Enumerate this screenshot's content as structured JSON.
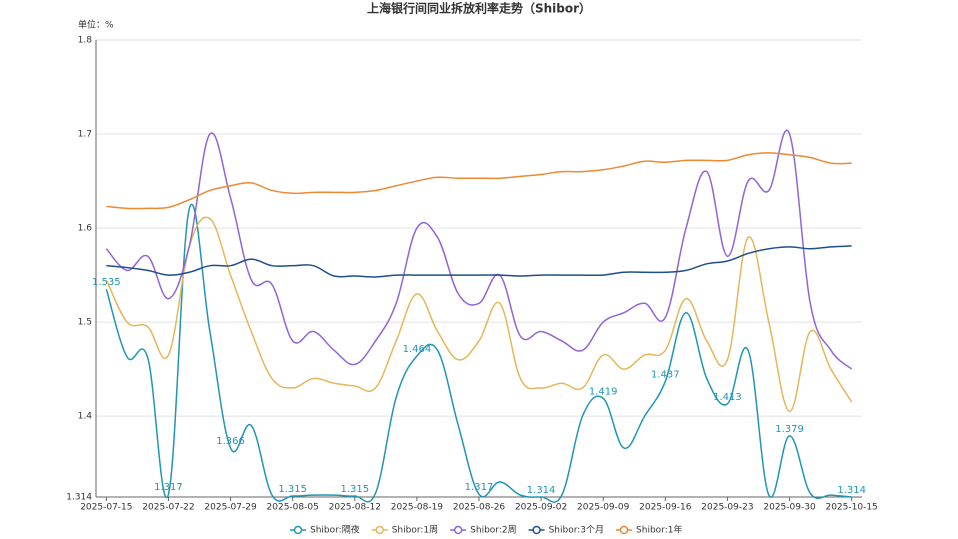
{
  "chart_data": {
    "type": "line",
    "title": "上海银行间同业拆放利率走势（Shibor）",
    "y_label": "单位：%",
    "categories": [
      "2025-07-15",
      null,
      null,
      "2025-07-22",
      null,
      null,
      "2025-07-29",
      null,
      null,
      "2025-08-05",
      null,
      null,
      "2025-08-12",
      null,
      null,
      "2025-08-19",
      null,
      null,
      "2025-08-26",
      null,
      null,
      "2025-09-02",
      null,
      null,
      "2025-09-09",
      null,
      null,
      "2025-09-16",
      null,
      null,
      "2025-09-23",
      null,
      null,
      "2025-09-30",
      null,
      null,
      "2025-10-15"
    ],
    "series": [
      {
        "name": "Shibor:隔夜",
        "color": "#1e96b4",
        "values": [
          1.535,
          1.463,
          1.462,
          1.317,
          1.62,
          1.49,
          1.366,
          1.39,
          1.316,
          1.315,
          1.316,
          1.316,
          1.315,
          1.318,
          1.42,
          1.464,
          1.47,
          1.39,
          1.317,
          1.33,
          1.316,
          1.314,
          1.316,
          1.4,
          1.419,
          1.366,
          1.4,
          1.437,
          1.51,
          1.44,
          1.413,
          1.47,
          1.316,
          1.379,
          1.318,
          1.316,
          1.314
        ],
        "value_labels": [
          "1.535",
          null,
          null,
          "1.317",
          null,
          null,
          "1.366",
          null,
          null,
          "1.315",
          null,
          null,
          "1.315",
          null,
          null,
          "1.464",
          null,
          null,
          "1.317",
          null,
          null,
          "1.314",
          null,
          null,
          "1.419",
          null,
          null,
          "1.437",
          null,
          null,
          "1.413",
          null,
          null,
          "1.379",
          null,
          null,
          "1.314"
        ]
      },
      {
        "name": "Shibor:1周",
        "color": "#e5b65a",
        "values": [
          1.545,
          1.5,
          1.495,
          1.465,
          1.58,
          1.61,
          1.55,
          1.49,
          1.44,
          1.43,
          1.44,
          1.435,
          1.432,
          1.43,
          1.48,
          1.53,
          1.49,
          1.46,
          1.48,
          1.52,
          1.44,
          1.43,
          1.435,
          1.43,
          1.465,
          1.45,
          1.465,
          1.47,
          1.525,
          1.48,
          1.46,
          1.59,
          1.5,
          1.405,
          1.49,
          1.45,
          1.415
        ]
      },
      {
        "name": "Shibor:2周",
        "color": "#9064d8",
        "values": [
          1.578,
          1.555,
          1.57,
          1.525,
          1.58,
          1.7,
          1.632,
          1.545,
          1.54,
          1.48,
          1.49,
          1.47,
          1.455,
          1.48,
          1.52,
          1.6,
          1.59,
          1.53,
          1.52,
          1.55,
          1.485,
          1.49,
          1.48,
          1.47,
          1.5,
          1.51,
          1.52,
          1.505,
          1.6,
          1.66,
          1.57,
          1.65,
          1.64,
          1.7,
          1.52,
          1.47,
          1.45
        ]
      },
      {
        "name": "Shibor:3个月",
        "color": "#1f4e8c",
        "values": [
          1.56,
          1.558,
          1.555,
          1.55,
          1.553,
          1.56,
          1.56,
          1.567,
          1.56,
          1.56,
          1.56,
          1.549,
          1.549,
          1.548,
          1.55,
          1.55,
          1.55,
          1.55,
          1.55,
          1.55,
          1.549,
          1.55,
          1.55,
          1.55,
          1.55,
          1.553,
          1.553,
          1.553,
          1.555,
          1.562,
          1.565,
          1.573,
          1.578,
          1.58,
          1.578,
          1.58,
          1.581
        ]
      },
      {
        "name": "Shibor:1年",
        "color": "#ee8833",
        "values": [
          1.623,
          1.621,
          1.621,
          1.622,
          1.63,
          1.64,
          1.645,
          1.648,
          1.64,
          1.637,
          1.638,
          1.638,
          1.638,
          1.64,
          1.645,
          1.65,
          1.654,
          1.653,
          1.653,
          1.653,
          1.655,
          1.657,
          1.66,
          1.66,
          1.662,
          1.666,
          1.671,
          1.67,
          1.672,
          1.672,
          1.672,
          1.678,
          1.68,
          1.678,
          1.675,
          1.669,
          1.669
        ]
      }
    ],
    "ylim": [
      1.314,
      1.8
    ],
    "yticks": [
      1.314,
      1.4,
      1.5,
      1.6,
      1.7,
      1.8
    ],
    "grid": true
  }
}
